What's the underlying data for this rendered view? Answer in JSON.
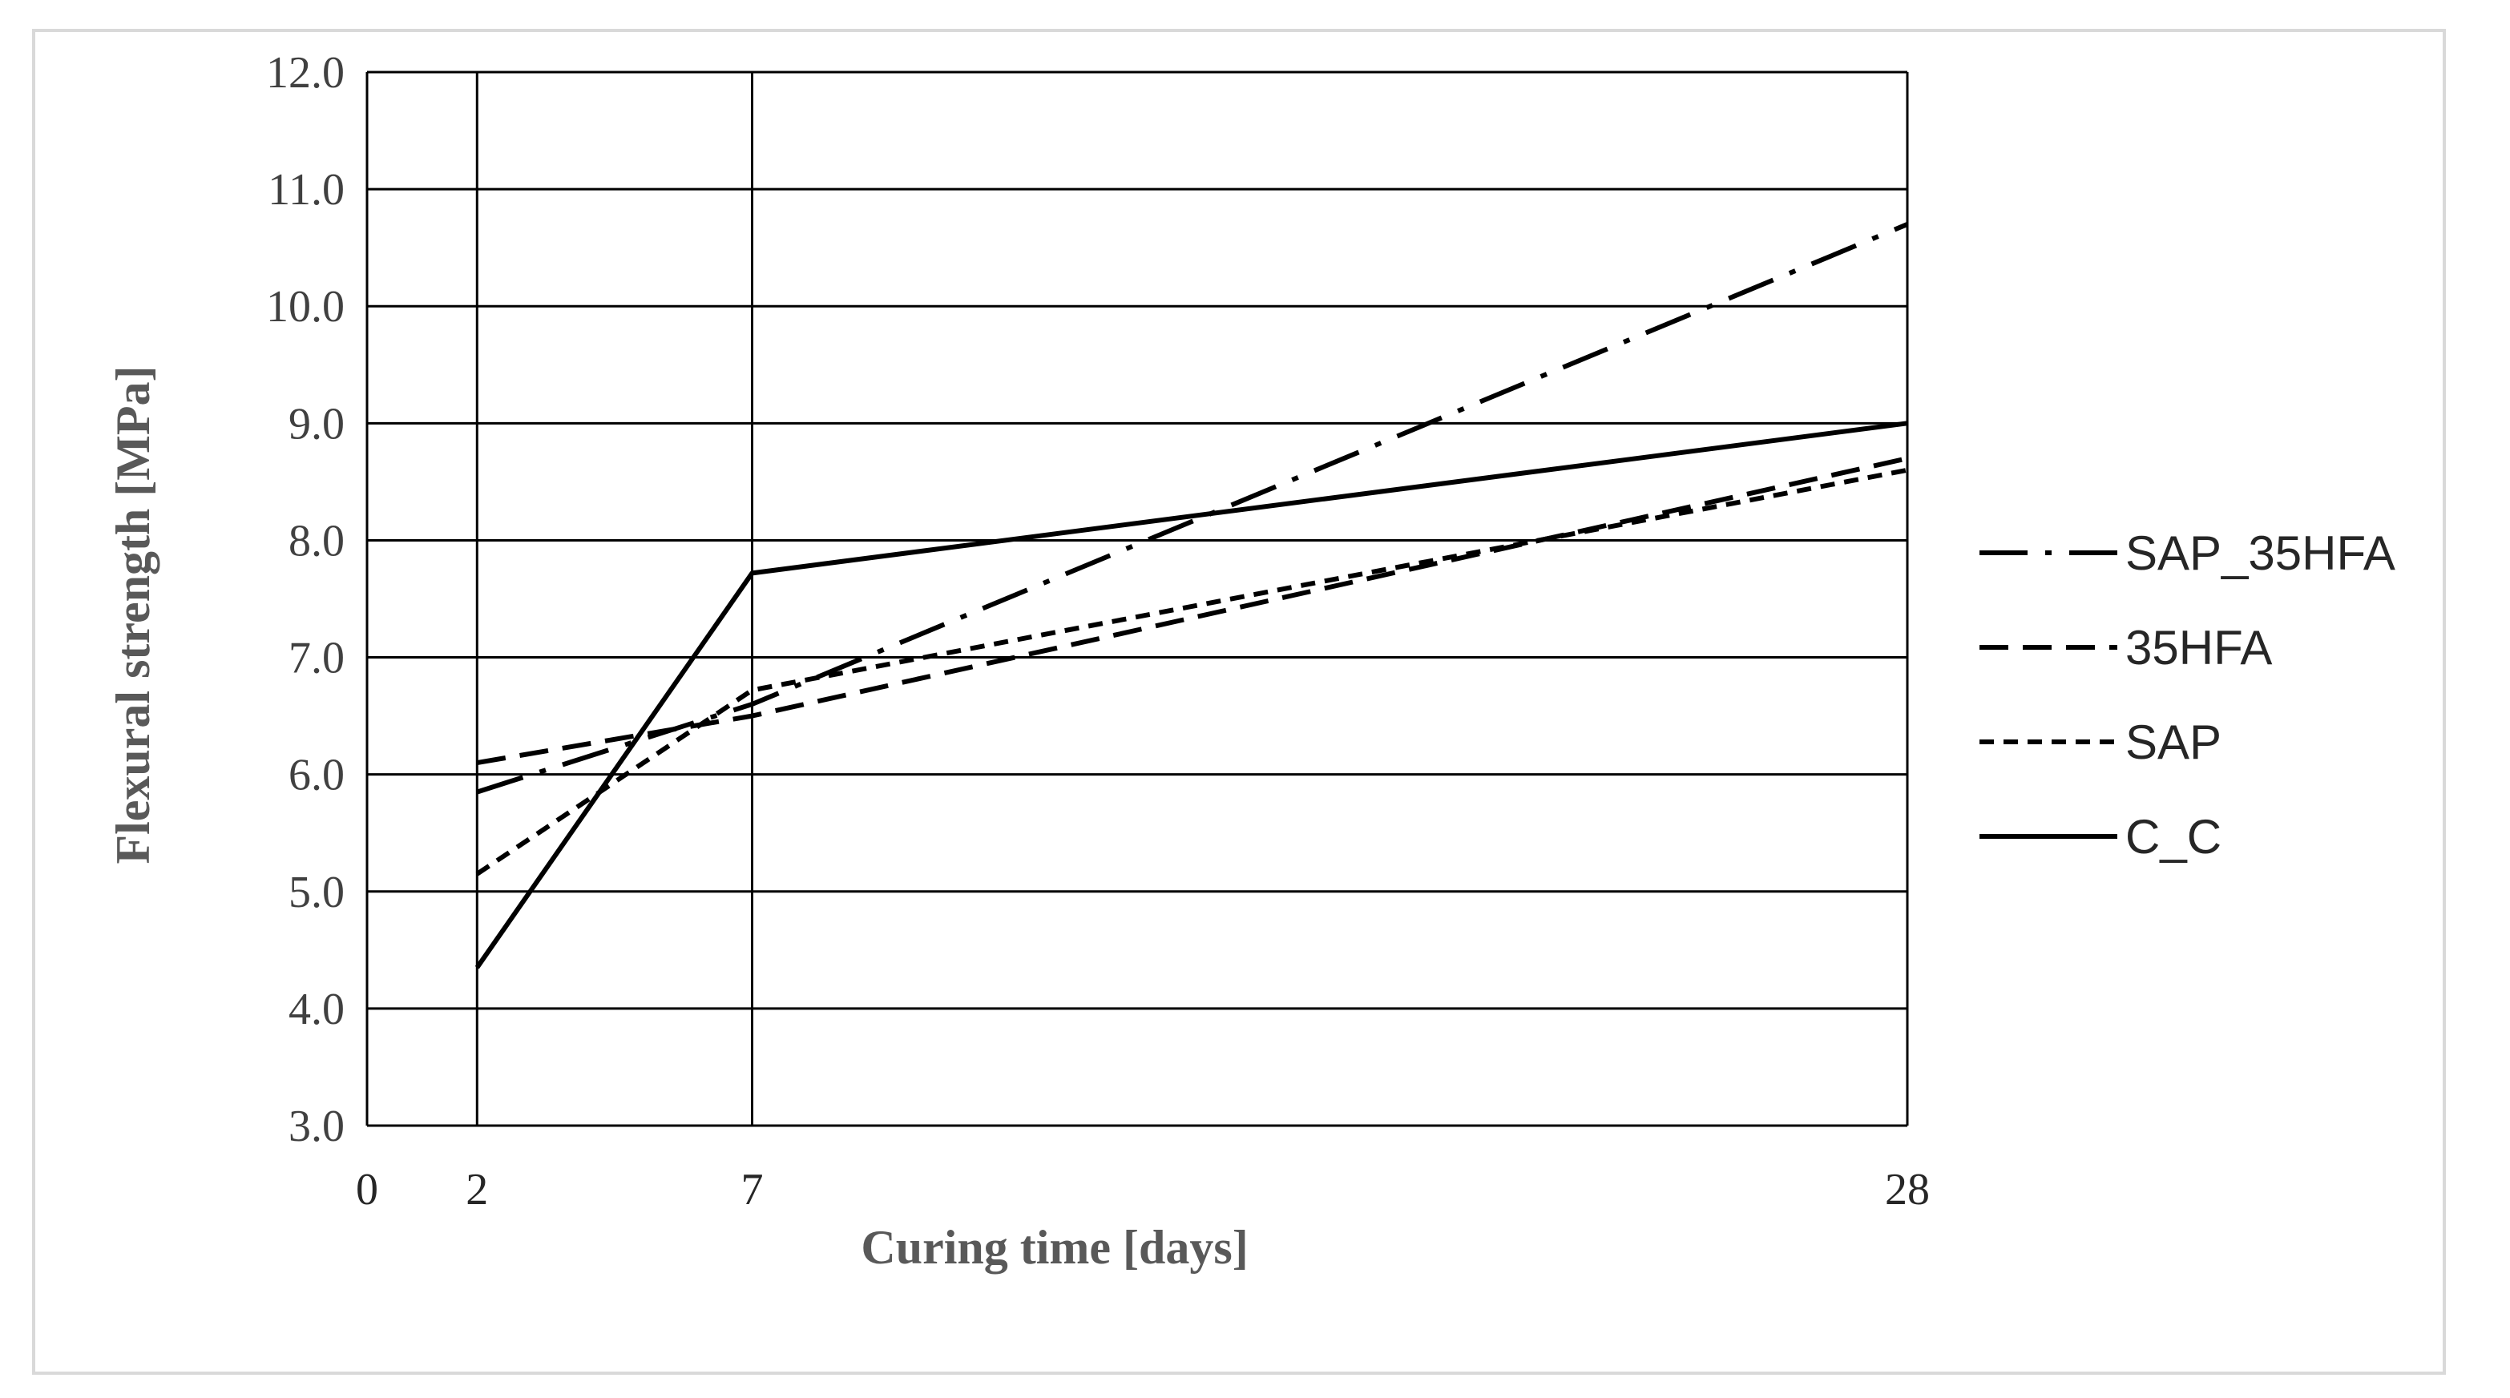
{
  "chart_data": {
    "type": "line",
    "title": "",
    "xlabel": "Curing time [days]",
    "ylabel": "Flexural strength  [MPa]",
    "x_ticks": [
      "0",
      "2",
      "7",
      "28"
    ],
    "y_ticks": [
      "3.0",
      "4.0",
      "5.0",
      "6.0",
      "7.0",
      "8.0",
      "9.0",
      "10.0",
      "11.0",
      "12.0"
    ],
    "xlim": [
      0,
      28
    ],
    "ylim": [
      3.0,
      12.0
    ],
    "grid": "horizontal gridlines at each y tick; vertical lines at x = 2 and x = 7",
    "legend_position": "right",
    "x": [
      2,
      7,
      28
    ],
    "series": [
      {
        "name": "SAP_35HFA",
        "style": "dash-dot",
        "color": "#000000",
        "values": [
          5.85,
          6.6,
          10.7
        ]
      },
      {
        "name": "35HFA",
        "style": "dashed",
        "color": "#000000",
        "values": [
          6.1,
          6.5,
          8.7
        ]
      },
      {
        "name": "SAP",
        "style": "short-dashed",
        "color": "#000000",
        "values": [
          5.15,
          6.72,
          8.6
        ]
      },
      {
        "name": "C_C",
        "style": "solid",
        "color": "#000000",
        "values": [
          4.35,
          7.72,
          9.0
        ]
      }
    ]
  }
}
